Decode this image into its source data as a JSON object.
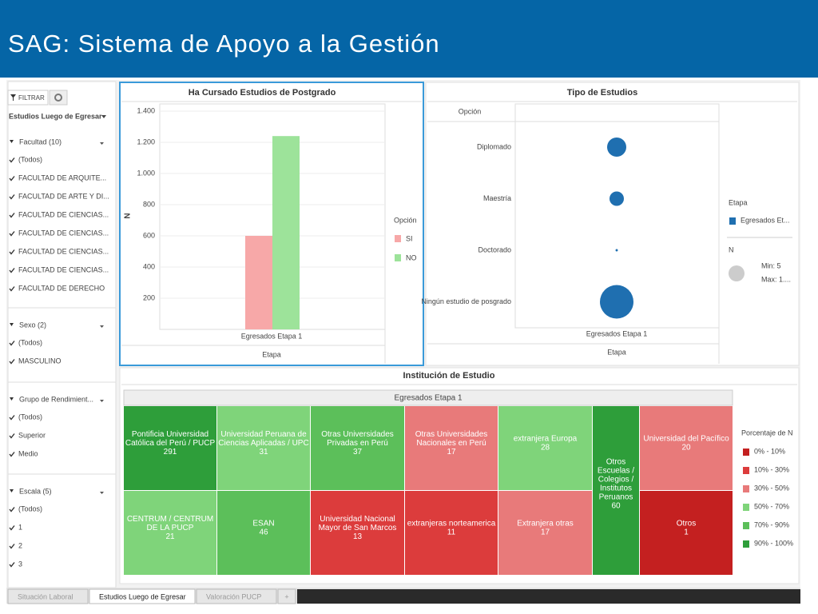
{
  "header": {
    "title": "SAG: Sistema de Apoyo a la Gestión"
  },
  "sidebar": {
    "toolbar": "FILTRAR",
    "dropdown": "Estudios Luego de Egresar",
    "filters": [
      {
        "title": "Facultad (10)",
        "items": [
          "(Todos)",
          "FACULTAD DE ARQUITE...",
          "FACULTAD DE ARTE Y DI...",
          "FACULTAD DE CIENCIAS...",
          "FACULTAD DE CIENCIAS...",
          "FACULTAD DE CIENCIAS...",
          "FACULTAD DE CIENCIAS...",
          "FACULTAD DE DERECHO"
        ]
      },
      {
        "title": "Sexo (2)",
        "items": [
          "(Todos)",
          "MASCULINO"
        ]
      },
      {
        "title": "Grupo de Rendimient...",
        "items": [
          "(Todos)",
          "Superior",
          "Medio"
        ]
      },
      {
        "title": "Escala (5)",
        "items": [
          "(Todos)",
          "1",
          "2",
          "3"
        ]
      }
    ]
  },
  "bar_chart": {
    "type": "bar",
    "title": "Ha Cursado Estudios  de Postgrado",
    "y_label": "N",
    "x_label": "Etapa",
    "categories": [
      "Egresados Etapa 1"
    ],
    "legend_title": "Opción",
    "series": [
      {
        "name": "SI",
        "color": "#f7a8a8",
        "values": [
          600
        ]
      },
      {
        "name": "NO",
        "color": "#9de39a",
        "values": [
          1240
        ]
      }
    ],
    "ylim": [
      0,
      1500
    ],
    "yticks": [
      200,
      400,
      600,
      800,
      {
        "value": 1000,
        "label": "1.000"
      },
      {
        "value": 1200,
        "label": "1.200"
      },
      {
        "value": 1400,
        "label": "1.400"
      }
    ]
  },
  "bubble_chart": {
    "type": "scatter",
    "title": "Tipo de Estudios",
    "row_header": "Opción",
    "categories": [
      "Diplomado",
      "Maestría",
      "Doctorado",
      "Ningún estudio de posgrado"
    ],
    "x_category": "Egresados Etapa 1",
    "x_label": "Etapa",
    "color": "#1f6fb0",
    "values": [
      405,
      228,
      6,
      1240
    ],
    "legend": {
      "color_title": "Etapa",
      "color_item": "Egresados Et...",
      "size_title": "N",
      "min": "Min: 5",
      "max": "Max: 1...."
    }
  },
  "treemap": {
    "title": "Institución de Estudio",
    "header": "Egresados Etapa 1",
    "cells": [
      {
        "lines": [
          "Pontificia Universidad",
          "Católica del Perú / PUCP"
        ],
        "value": 291,
        "color": "#2e9e3a"
      },
      {
        "lines": [
          "Universidad Peruana de",
          "Ciencias Aplicadas / UPC"
        ],
        "value": 31,
        "color": "#7fd47a"
      },
      {
        "lines": [
          "Otras Universidades",
          "Privadas en Perú"
        ],
        "value": 37,
        "color": "#5cbf5a"
      },
      {
        "lines": [
          "Otras Universidades",
          "Nacionales en Perú"
        ],
        "value": 17,
        "color": "#e87a7a"
      },
      {
        "lines": [
          "extranjera Europa"
        ],
        "value": 28,
        "color": "#7fd47a"
      },
      {
        "lines": [
          "Otros",
          "Escuelas /",
          "Colegios /",
          "Institutos",
          "Peruanos"
        ],
        "value": 60,
        "color": "#2e9e3a"
      },
      {
        "lines": [
          "Universidad del Pacífico"
        ],
        "value": 20,
        "color": "#e87a7a"
      },
      {
        "lines": [
          "CENTRUM / CENTRUM",
          "DE LA PUCP"
        ],
        "value": 21,
        "color": "#7fd47a"
      },
      {
        "lines": [
          "ESAN"
        ],
        "value": 46,
        "color": "#5cbf5a"
      },
      {
        "lines": [
          "Universidad Nacional",
          "Mayor de San Marcos"
        ],
        "value": 13,
        "color": "#dc3c3c"
      },
      {
        "lines": [
          "extranjeras norteamerica"
        ],
        "value": 11,
        "color": "#dc3c3c"
      },
      {
        "lines": [
          "Extranjera otras"
        ],
        "value": 17,
        "color": "#e87a7a"
      },
      {
        "lines": [
          "Otros"
        ],
        "value": 1,
        "color": "#c42020"
      }
    ],
    "legend_title": "Porcentaje de N",
    "legend": [
      {
        "label": "0% - 10%",
        "color": "#c42020"
      },
      {
        "label": "10% - 30%",
        "color": "#dc3c3c"
      },
      {
        "label": "30% - 50%",
        "color": "#e87a7a"
      },
      {
        "label": "50% - 70%",
        "color": "#7fd47a"
      },
      {
        "label": "70% - 90%",
        "color": "#5cbf5a"
      },
      {
        "label": "90% - 100%",
        "color": "#2e9e3a"
      }
    ]
  },
  "tabs": [
    "Situación Laboral",
    "Estudios Luego de Egresar",
    "Valoración PUCP",
    "+"
  ]
}
